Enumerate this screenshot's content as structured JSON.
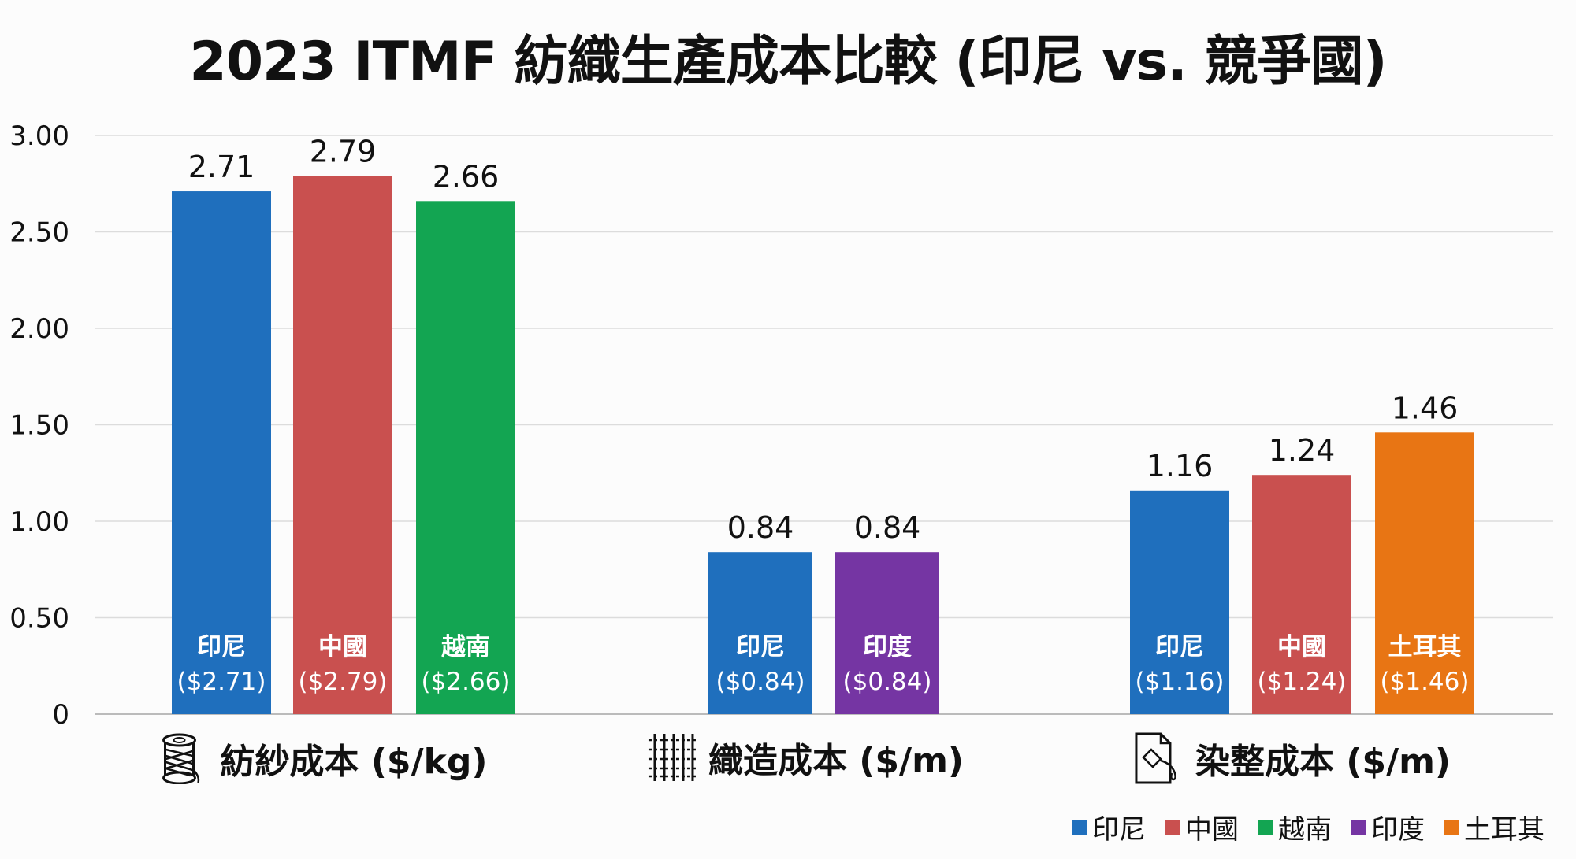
{
  "chart_data": {
    "type": "bar",
    "title": "2023 ITMF 紡織生產成本比較 (印尼 vs. 競爭國)",
    "ylim": [
      0,
      3.0
    ],
    "yticks": [
      "0",
      "0.50",
      "1.00",
      "1.50",
      "2.00",
      "2.50",
      "3.00"
    ],
    "grid": true,
    "legend_position": "bottom-right",
    "colors": {
      "印尼": "#1f6fbd",
      "中國": "#c9504f",
      "越南": "#13a552",
      "印度": "#7535a3",
      "土耳其": "#e87514"
    },
    "legend": [
      "印尼",
      "中國",
      "越南",
      "印度",
      "土耳其"
    ],
    "groups": [
      {
        "label": "紡紗成本 ($/kg)",
        "icon": "thread-spool-icon",
        "bars": [
          {
            "country": "印尼",
            "value": 2.71,
            "value_label": "2.71",
            "inner_label": "($2.71)"
          },
          {
            "country": "中國",
            "value": 2.79,
            "value_label": "2.79",
            "inner_label": "($2.79)"
          },
          {
            "country": "越南",
            "value": 2.66,
            "value_label": "2.66",
            "inner_label": "($2.66)"
          }
        ]
      },
      {
        "label": "織造成本 ($/m)",
        "icon": "woven-fabric-icon",
        "bars": [
          {
            "country": "印尼",
            "value": 0.84,
            "value_label": "0.84",
            "inner_label": "($0.84)"
          },
          {
            "country": "印度",
            "value": 0.84,
            "value_label": "0.84",
            "inner_label": "($0.84)"
          }
        ]
      },
      {
        "label": "染整成本 ($/m)",
        "icon": "dye-document-icon",
        "bars": [
          {
            "country": "印尼",
            "value": 1.16,
            "value_label": "1.16",
            "inner_label": "($1.16)"
          },
          {
            "country": "中國",
            "value": 1.24,
            "value_label": "1.24",
            "inner_label": "($1.24)"
          },
          {
            "country": "土耳其",
            "value": 1.46,
            "value_label": "1.46",
            "inner_label": "($1.46)"
          }
        ]
      }
    ]
  }
}
